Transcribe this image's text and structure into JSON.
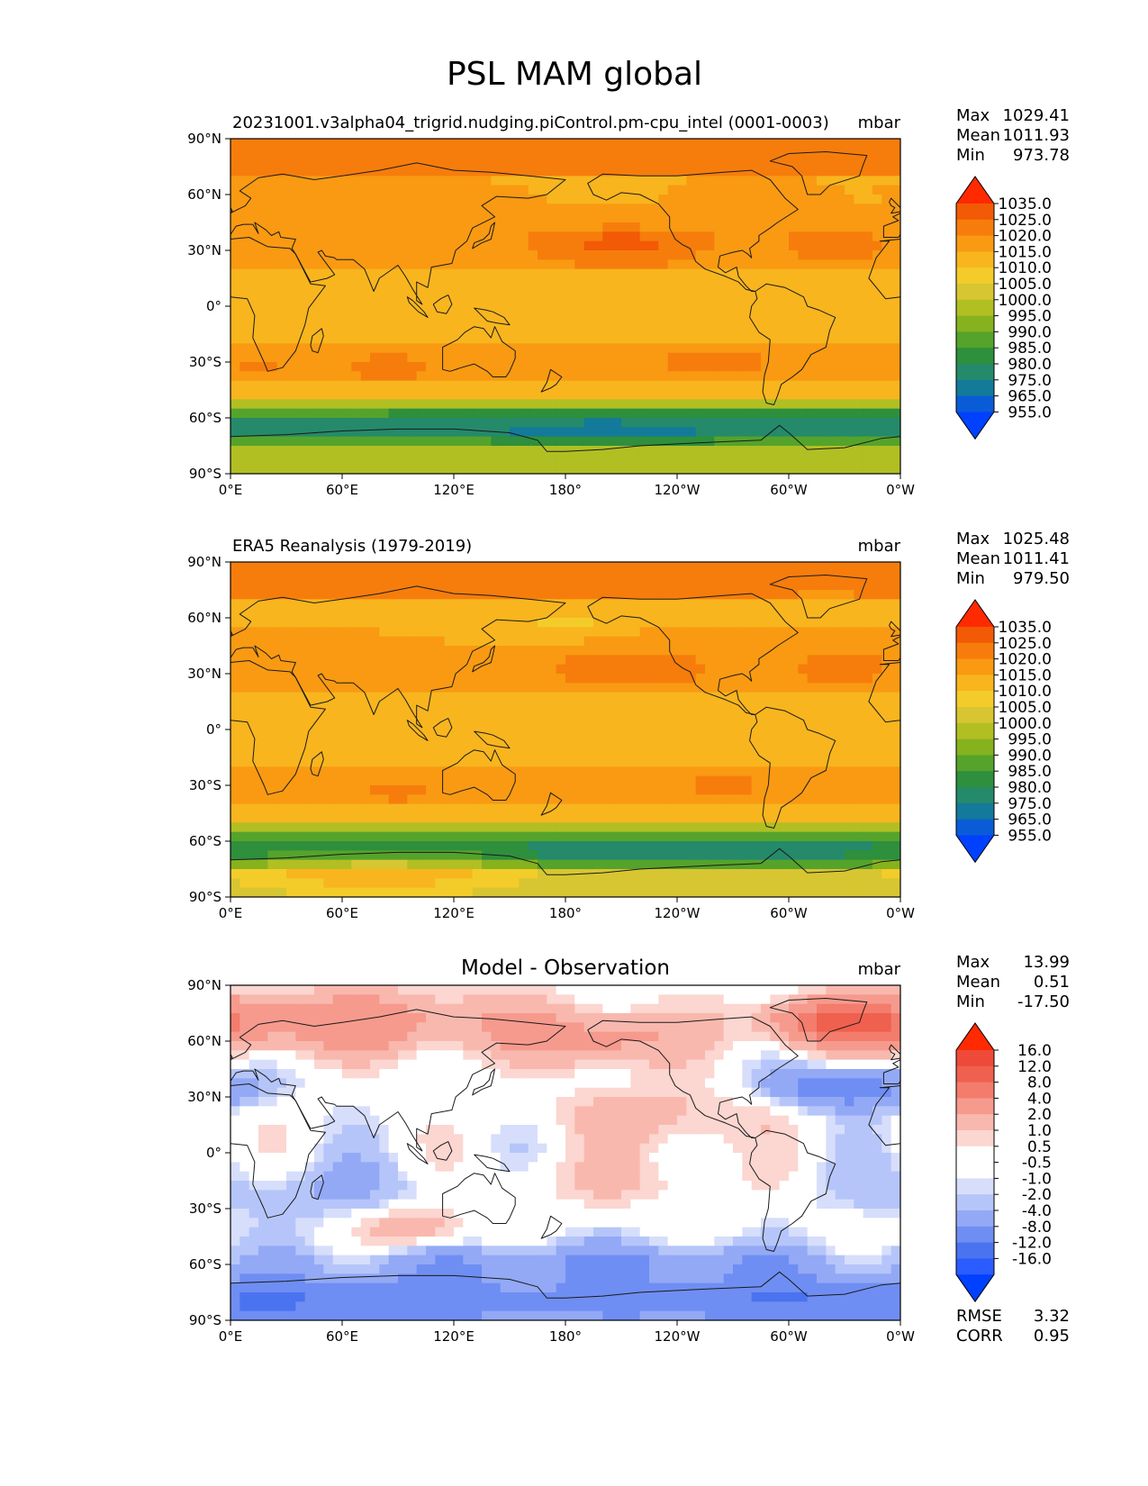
{
  "page": {
    "title": "PSL MAM global"
  },
  "axes_ticks": {
    "lat": [
      "90°N",
      "60°N",
      "30°N",
      "0°",
      "30°S",
      "60°S",
      "90°S"
    ],
    "lon": [
      "0°E",
      "60°E",
      "120°E",
      "180°",
      "120°W",
      "60°W",
      "0°W"
    ]
  },
  "colors": {
    "abs": [
      "#0041ff",
      "#0a5cd6",
      "#137a9a",
      "#258a6a",
      "#2e8f3c",
      "#55a32b",
      "#86b21e",
      "#b1bf23",
      "#d7c631",
      "#f4cc2a",
      "#f8b51e",
      "#f99a12",
      "#f67d0c",
      "#f25a05",
      "#ff2a00"
    ],
    "diff": [
      "#0041ff",
      "#2b5cff",
      "#4a73f0",
      "#6f8ef3",
      "#93a9f6",
      "#b6c5f9",
      "#d6defb",
      "#ffffff",
      "#ffffff",
      "#fcd6d0",
      "#f9b8ae",
      "#f69a8d",
      "#f37c6d",
      "#f0604f",
      "#ee4a3a",
      "#ff2a00"
    ]
  },
  "chart_data": [
    {
      "type": "heatmap",
      "title": "20231001.v3alpha04_trigrid.nudging.piControl.pm-cpu_intel (0001-0003)",
      "units": "mbar",
      "xlim": [
        0,
        360
      ],
      "ylim": [
        -90,
        90
      ],
      "stats": {
        "max": "1029.41",
        "mean": "1011.93",
        "min": "973.78"
      },
      "colorbar": [
        "1035.0",
        "1025.0",
        "1020.0",
        "1015.0",
        "1010.0",
        "1005.0",
        "1000.0",
        "995.0",
        "990.0",
        "985.0",
        "980.0",
        "975.0",
        "965.0",
        "955.0"
      ]
    },
    {
      "type": "heatmap",
      "title": "ERA5 Reanalysis (1979-2019)",
      "units": "mbar",
      "xlim": [
        0,
        360
      ],
      "ylim": [
        -90,
        90
      ],
      "stats": {
        "max": "1025.48",
        "mean": "1011.41",
        "min": "979.50"
      },
      "colorbar": [
        "1035.0",
        "1025.0",
        "1020.0",
        "1015.0",
        "1010.0",
        "1005.0",
        "1000.0",
        "995.0",
        "990.0",
        "985.0",
        "980.0",
        "975.0",
        "965.0",
        "955.0"
      ]
    },
    {
      "type": "heatmap",
      "title": "Model - Observation",
      "units": "mbar",
      "xlim": [
        0,
        360
      ],
      "ylim": [
        -90,
        90
      ],
      "stats": {
        "max": "13.99",
        "mean": "0.51",
        "min": "-17.50",
        "rmse": "3.32",
        "corr": "0.95"
      },
      "colorbar": [
        "16.0",
        "12.0",
        "8.0",
        "4.0",
        "2.0",
        "1.0",
        "0.5",
        "-0.5",
        "-1.0",
        "-2.0",
        "-4.0",
        "-8.0",
        "-12.0",
        "-16.0"
      ]
    }
  ],
  "stat_labels": {
    "max": "Max",
    "mean": "Mean",
    "min": "Min",
    "rmse": "RMSE",
    "corr": "CORR"
  }
}
